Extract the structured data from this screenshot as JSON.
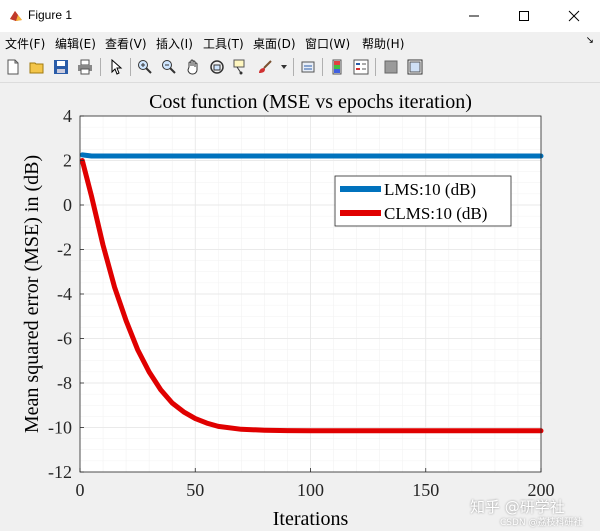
{
  "window": {
    "title": "Figure 1"
  },
  "menu": {
    "items": [
      "文件(F)",
      "编辑(E)",
      "查看(V)",
      "插入(I)",
      "工具(T)",
      "桌面(D)",
      "窗口(W)",
      "帮助(H)"
    ],
    "overflow": "↘"
  },
  "toolbar": {
    "buttons": [
      "new-figure-icon",
      "open-file-icon",
      "save-icon",
      "print-icon",
      "pointer-icon",
      "zoom-in-icon",
      "zoom-out-icon",
      "pan-icon",
      "rotate-3d-icon",
      "data-cursor-icon",
      "brush-icon",
      "link-icon",
      "colorbar-icon",
      "legend-icon",
      "hide-plot-tools-icon",
      "show-plot-tools-icon"
    ]
  },
  "colors": {
    "lms": "#0072bd",
    "clms": "#e00000",
    "grid": "#e6e6e6"
  },
  "chart_data": {
    "type": "line",
    "title": "Cost function (MSE vs epochs iteration)",
    "xlabel": "Iterations",
    "ylabel": "Mean squared error (MSE) in (dB)",
    "xlim": [
      0,
      200
    ],
    "ylim": [
      -12,
      4
    ],
    "xticks": [
      "0",
      "50",
      "100",
      "150",
      "200"
    ],
    "yticks": [
      "4",
      "2",
      "0",
      "-2",
      "-4",
      "-6",
      "-8",
      "-10",
      "-12"
    ],
    "grid": true,
    "legend_position": "top-right",
    "series": [
      {
        "name": "LMS:10 (dB)",
        "color": "#0072bd",
        "x": [
          1,
          5,
          10,
          20,
          40,
          60,
          80,
          100,
          120,
          140,
          160,
          180,
          200
        ],
        "y": [
          2.25,
          2.2,
          2.2,
          2.2,
          2.2,
          2.2,
          2.2,
          2.2,
          2.2,
          2.2,
          2.2,
          2.2,
          2.2
        ]
      },
      {
        "name": "CLMS:10 (dB)",
        "color": "#e00000",
        "x": [
          1,
          5,
          10,
          15,
          20,
          25,
          30,
          35,
          40,
          45,
          50,
          55,
          60,
          70,
          80,
          90,
          100,
          120,
          140,
          160,
          180,
          200
        ],
        "y": [
          2.0,
          0.4,
          -1.8,
          -3.7,
          -5.2,
          -6.5,
          -7.5,
          -8.3,
          -8.9,
          -9.3,
          -9.6,
          -9.8,
          -9.95,
          -10.08,
          -10.12,
          -10.14,
          -10.15,
          -10.15,
          -10.15,
          -10.15,
          -10.15,
          -10.15
        ]
      }
    ]
  },
  "watermark": {
    "main": "知乎 @研学社",
    "sub": "CSDN @荔枝科研社"
  }
}
